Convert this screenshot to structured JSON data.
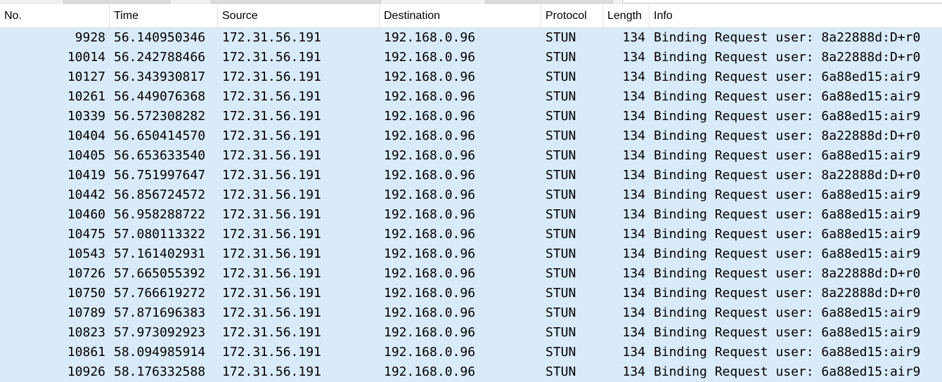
{
  "columns": {
    "no": "No.",
    "time": "Time",
    "source": "Source",
    "destination": "Destination",
    "protocol": "Protocol",
    "length": "Length",
    "info": "Info"
  },
  "packets": [
    {
      "no": "9928",
      "time": "56.140950346",
      "source": "172.31.56.191",
      "destination": "192.168.0.96",
      "protocol": "STUN",
      "length": "134",
      "info": "Binding Request user: 8a22888d:D+r0"
    },
    {
      "no": "10014",
      "time": "56.242788466",
      "source": "172.31.56.191",
      "destination": "192.168.0.96",
      "protocol": "STUN",
      "length": "134",
      "info": "Binding Request user: 8a22888d:D+r0"
    },
    {
      "no": "10127",
      "time": "56.343930817",
      "source": "172.31.56.191",
      "destination": "192.168.0.96",
      "protocol": "STUN",
      "length": "134",
      "info": "Binding Request user: 6a88ed15:air9"
    },
    {
      "no": "10261",
      "time": "56.449076368",
      "source": "172.31.56.191",
      "destination": "192.168.0.96",
      "protocol": "STUN",
      "length": "134",
      "info": "Binding Request user: 6a88ed15:air9"
    },
    {
      "no": "10339",
      "time": "56.572308282",
      "source": "172.31.56.191",
      "destination": "192.168.0.96",
      "protocol": "STUN",
      "length": "134",
      "info": "Binding Request user: 6a88ed15:air9"
    },
    {
      "no": "10404",
      "time": "56.650414570",
      "source": "172.31.56.191",
      "destination": "192.168.0.96",
      "protocol": "STUN",
      "length": "134",
      "info": "Binding Request user: 8a22888d:D+r0"
    },
    {
      "no": "10405",
      "time": "56.653633540",
      "source": "172.31.56.191",
      "destination": "192.168.0.96",
      "protocol": "STUN",
      "length": "134",
      "info": "Binding Request user: 6a88ed15:air9"
    },
    {
      "no": "10419",
      "time": "56.751997647",
      "source": "172.31.56.191",
      "destination": "192.168.0.96",
      "protocol": "STUN",
      "length": "134",
      "info": "Binding Request user: 8a22888d:D+r0"
    },
    {
      "no": "10442",
      "time": "56.856724572",
      "source": "172.31.56.191",
      "destination": "192.168.0.96",
      "protocol": "STUN",
      "length": "134",
      "info": "Binding Request user: 6a88ed15:air9"
    },
    {
      "no": "10460",
      "time": "56.958288722",
      "source": "172.31.56.191",
      "destination": "192.168.0.96",
      "protocol": "STUN",
      "length": "134",
      "info": "Binding Request user: 6a88ed15:air9"
    },
    {
      "no": "10475",
      "time": "57.080113322",
      "source": "172.31.56.191",
      "destination": "192.168.0.96",
      "protocol": "STUN",
      "length": "134",
      "info": "Binding Request user: 6a88ed15:air9"
    },
    {
      "no": "10543",
      "time": "57.161402931",
      "source": "172.31.56.191",
      "destination": "192.168.0.96",
      "protocol": "STUN",
      "length": "134",
      "info": "Binding Request user: 6a88ed15:air9"
    },
    {
      "no": "10726",
      "time": "57.665055392",
      "source": "172.31.56.191",
      "destination": "192.168.0.96",
      "protocol": "STUN",
      "length": "134",
      "info": "Binding Request user: 8a22888d:D+r0"
    },
    {
      "no": "10750",
      "time": "57.766619272",
      "source": "172.31.56.191",
      "destination": "192.168.0.96",
      "protocol": "STUN",
      "length": "134",
      "info": "Binding Request user: 8a22888d:D+r0"
    },
    {
      "no": "10789",
      "time": "57.871696383",
      "source": "172.31.56.191",
      "destination": "192.168.0.96",
      "protocol": "STUN",
      "length": "134",
      "info": "Binding Request user: 6a88ed15:air9"
    },
    {
      "no": "10823",
      "time": "57.973092923",
      "source": "172.31.56.191",
      "destination": "192.168.0.96",
      "protocol": "STUN",
      "length": "134",
      "info": "Binding Request user: 6a88ed15:air9"
    },
    {
      "no": "10861",
      "time": "58.094985914",
      "source": "172.31.56.191",
      "destination": "192.168.0.96",
      "protocol": "STUN",
      "length": "134",
      "info": "Binding Request user: 6a88ed15:air9"
    },
    {
      "no": "10926",
      "time": "58.176332588",
      "source": "172.31.56.191",
      "destination": "192.168.0.96",
      "protocol": "STUN",
      "length": "134",
      "info": "Binding Request user: 6a88ed15:air9"
    }
  ],
  "colors": {
    "row_background": "#d9ebfa",
    "header_background": "#ffffff"
  }
}
